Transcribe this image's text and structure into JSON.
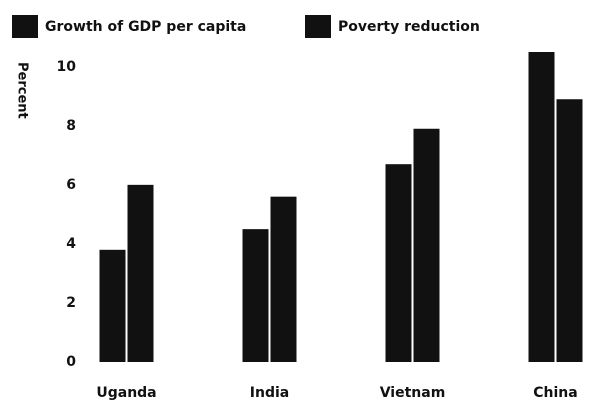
{
  "chart_data": {
    "type": "bar",
    "categories": [
      "Uganda",
      "India",
      "Vietnam",
      "China"
    ],
    "series": [
      {
        "name": "Growth of GDP per capita",
        "color": "#111111",
        "values": [
          3.8,
          4.5,
          6.7,
          10.5
        ]
      },
      {
        "name": "Poverty reduction",
        "color": "#111111",
        "values": [
          6.0,
          5.6,
          7.9,
          8.9
        ]
      }
    ],
    "y_label": "Percent",
    "ylim": [
      0,
      10.5
    ],
    "yticks": [
      0,
      2,
      4,
      6,
      8,
      10
    ],
    "grid": false
  }
}
